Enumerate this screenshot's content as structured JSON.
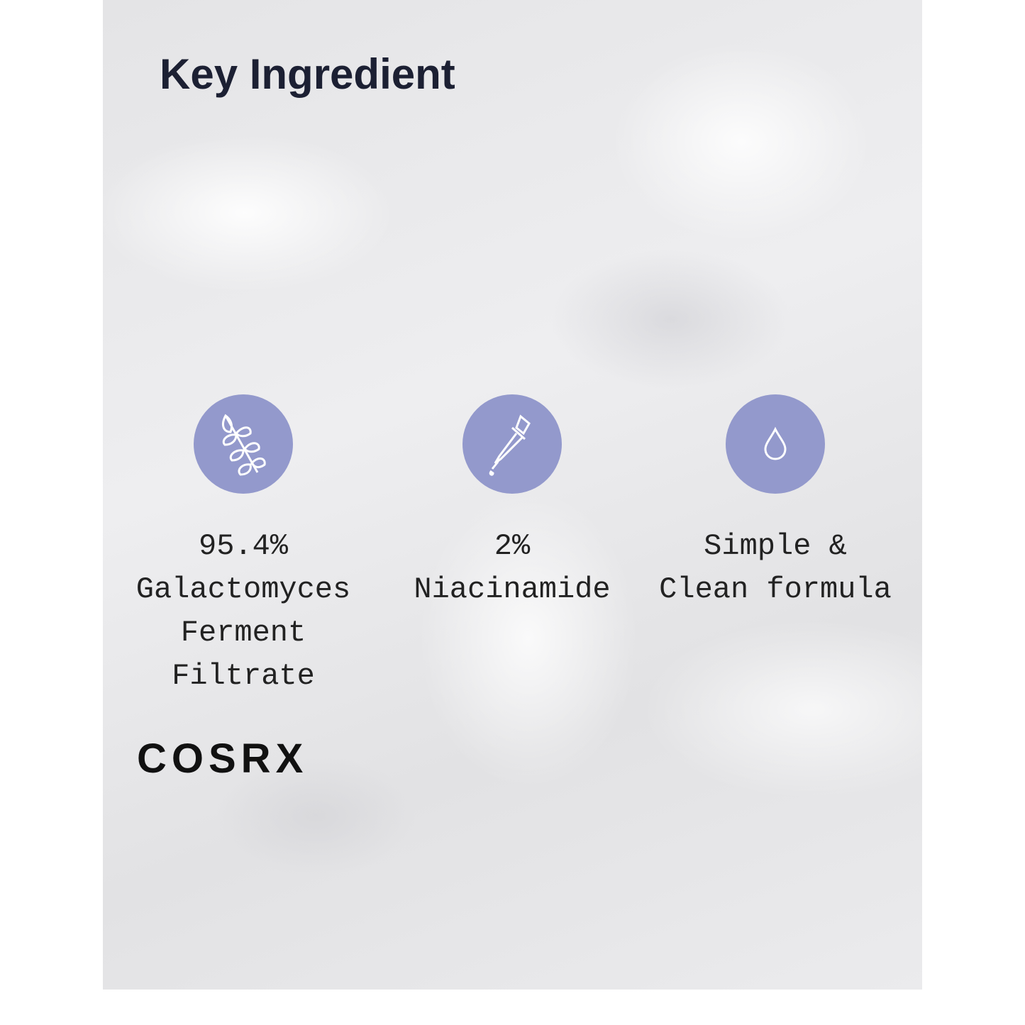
{
  "header": {
    "title": "Key Ingredient"
  },
  "features": [
    {
      "icon": "leaf-branch-icon",
      "label": "95.4% Galactomyces Ferment Filtrate",
      "lines": [
        "95.4%",
        "Galactomyces",
        "Ferment",
        "Filtrate"
      ]
    },
    {
      "icon": "dropper-icon",
      "lines": [
        "2%",
        "Niacinamide"
      ]
    },
    {
      "icon": "water-drop-icon",
      "lines": [
        "Simple &",
        "Clean formula"
      ]
    }
  ],
  "colors": {
    "accent": "#9399cc",
    "title": "#1c2033"
  },
  "brand": {
    "logo": "COSRX"
  }
}
